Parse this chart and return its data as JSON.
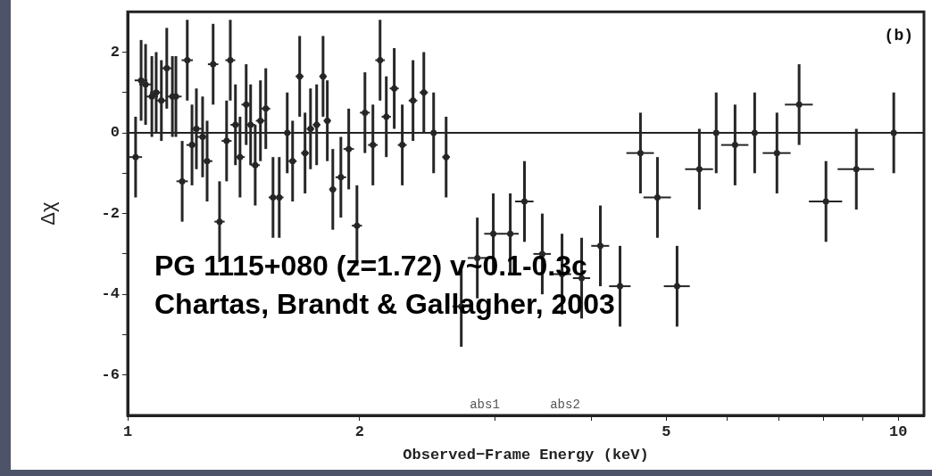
{
  "chart_data": {
    "type": "scatter",
    "xlabel": "Observed−Frame Energy (keV)",
    "ylabel": "Δχ",
    "log": "x",
    "grid": false,
    "legend": false,
    "xlim": [
      1,
      10.8
    ],
    "xticks": [
      1,
      2,
      {
        "value": 3,
        "label": null
      },
      {
        "value": 4,
        "label": null
      },
      5,
      {
        "value": 6,
        "label": null
      },
      {
        "value": 7,
        "label": null
      },
      {
        "value": 8,
        "label": null
      },
      {
        "value": 9,
        "label": null
      },
      10
    ],
    "ylim": [
      -7,
      3
    ],
    "yticks": [
      -6,
      {
        "value": -5,
        "label": null
      },
      -4,
      {
        "value": -3,
        "label": null
      },
      -2,
      {
        "value": -1,
        "label": null
      },
      0,
      {
        "value": 1,
        "label": null
      },
      2
    ],
    "ref_lines": [
      {
        "axis": "y",
        "value": 0,
        "color": "#222222"
      }
    ],
    "annotations": [
      "(b)",
      "PG 1115+080 (z=1.72) v~0.1-0.3c",
      "Chartas, Brandt & Gallagher, 2003",
      "abs1",
      "abs2"
    ],
    "series": [
      {
        "color": "#262626",
        "x": [
          1.024,
          1.041,
          1.055,
          1.075,
          1.089,
          1.106,
          1.124,
          1.143,
          1.155,
          1.177,
          1.195,
          1.212,
          1.228,
          1.251,
          1.268,
          1.291,
          1.316,
          1.344,
          1.359,
          1.38,
          1.399,
          1.425,
          1.444,
          1.464,
          1.487,
          1.511,
          1.544,
          1.573,
          1.611,
          1.637,
          1.672,
          1.699,
          1.727,
          1.759,
          1.793,
          1.816,
          1.846,
          1.891,
          1.936,
          1.984,
          2.032,
          2.081,
          2.126,
          2.166,
          2.218,
          2.272,
          2.346,
          2.423,
          2.495,
          2.59,
          2.71,
          2.843,
          2.982,
          3.137,
          3.273,
          3.452,
          3.662,
          3.883,
          4.106,
          4.355,
          4.629,
          4.87,
          5.164,
          5.52,
          5.805,
          6.141,
          6.512,
          6.96,
          7.437,
          8.058,
          8.824,
          9.868
        ],
        "values": [
          -0.6,
          1.3,
          1.2,
          0.9,
          1.0,
          0.8,
          1.6,
          0.9,
          0.9,
          -1.2,
          1.8,
          -0.3,
          0.1,
          -0.1,
          -0.7,
          1.7,
          -2.2,
          -0.2,
          1.8,
          0.2,
          -0.6,
          0.7,
          0.2,
          -0.8,
          0.3,
          0.6,
          -1.6,
          -1.6,
          0.0,
          -0.7,
          1.4,
          -0.5,
          0.1,
          0.2,
          1.4,
          0.3,
          -1.4,
          -1.1,
          -0.4,
          -2.3,
          0.5,
          -0.3,
          1.8,
          0.4,
          1.1,
          -0.3,
          0.8,
          1.0,
          0.0,
          -0.6,
          -4.3,
          -3.1,
          -2.5,
          -2.5,
          -1.7,
          -3.0,
          -3.5,
          -3.6,
          -2.8,
          -3.8,
          -0.5,
          -1.6,
          -3.8,
          -0.9,
          0.0,
          -0.3,
          0.0,
          -0.5,
          0.7,
          -1.7,
          -0.9,
          0.0
        ],
        "errors": [
          1,
          1,
          1,
          1,
          1,
          1,
          1,
          1,
          1,
          1,
          1,
          1,
          1,
          1,
          1,
          1,
          1,
          1,
          1,
          1,
          1,
          1,
          1,
          1,
          1,
          1,
          1,
          1,
          1,
          1,
          1,
          1,
          1,
          1,
          1,
          1,
          1,
          1,
          1,
          1,
          1,
          1,
          1,
          1,
          1,
          1,
          1,
          1,
          1,
          1,
          1,
          1,
          1,
          1,
          1,
          1,
          1,
          1,
          1,
          1,
          1,
          1,
          1,
          1,
          1,
          1,
          1,
          1,
          1,
          1,
          1,
          1
        ],
        "xerrors": [
          0.02,
          0.02,
          0.02,
          0.02,
          0.02,
          0.02,
          0.02,
          0.02,
          0.02,
          0.02,
          0.02,
          0.02,
          0.02,
          0.02,
          0.02,
          0.02,
          0.02,
          0.02,
          0.02,
          0.02,
          0.02,
          0.02,
          0.02,
          0.02,
          0.02,
          0.02,
          0.02,
          0.02,
          0.02,
          0.02,
          0.02,
          0.02,
          0.02,
          0.02,
          0.02,
          0.02,
          0.02,
          0.03,
          0.03,
          0.03,
          0.03,
          0.03,
          0.03,
          0.03,
          0.03,
          0.03,
          0.03,
          0.03,
          0.03,
          0.03,
          0.07,
          0.08,
          0.08,
          0.08,
          0.09,
          0.09,
          0.1,
          0.1,
          0.11,
          0.14,
          0.19,
          0.2,
          0.2,
          0.23,
          0.24,
          0.25,
          0.27,
          0.29,
          0.31,
          0.4,
          0.48,
          0.68
        ]
      }
    ]
  }
}
